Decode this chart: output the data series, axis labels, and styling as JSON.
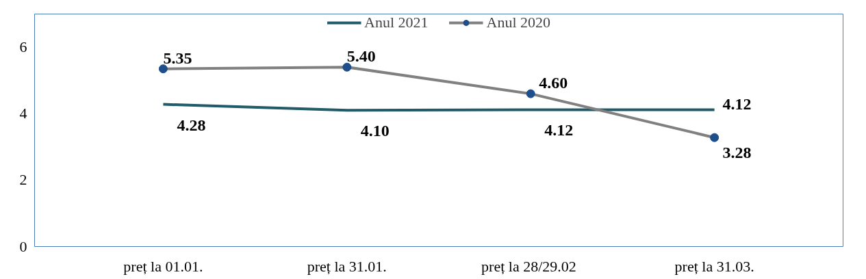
{
  "chart_data": {
    "type": "line",
    "categories": [
      "preț la 01.01.",
      "preț la 31.01.",
      "preț la  28/29.02",
      "preț la 31.03."
    ],
    "series": [
      {
        "name": "Anul 2021",
        "color": "#215a69",
        "values": [
          4.28,
          4.1,
          4.12,
          4.12
        ],
        "value_labels": [
          "4.28",
          "4.10",
          "4.12",
          "4.12"
        ],
        "marker": "none"
      },
      {
        "name": "Anul 2020",
        "color": "#808080",
        "values": [
          5.35,
          5.4,
          4.6,
          3.28
        ],
        "value_labels": [
          "5.35",
          "5.40",
          "4.60",
          "3.28"
        ],
        "marker": "circle"
      }
    ],
    "ylim": [
      0,
      7
    ],
    "yticks": [
      0,
      2,
      4,
      6
    ],
    "grid": false,
    "legend": "top"
  }
}
